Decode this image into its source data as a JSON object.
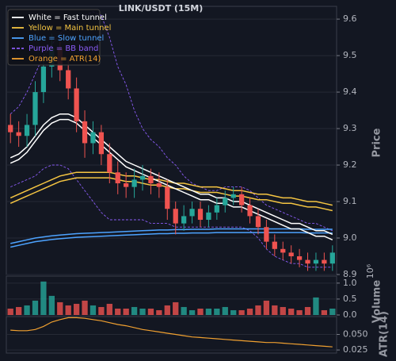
{
  "chart_data": {
    "type": "candlestick",
    "title": "LINK/USDT (15M)",
    "ylabel": "Price",
    "ylim": [
      8.9,
      9.635
    ],
    "yticks": [
      8.9,
      {
        "value": 9,
        "label": "9.0"
      },
      9.1,
      9.2,
      9.3,
      9.4,
      9.5,
      9.6
    ],
    "up_color": "#26a69a",
    "down_color": "#ef5350",
    "open": [
      9.31,
      9.29,
      9.28,
      9.31,
      9.4,
      9.47,
      9.52,
      9.46,
      9.41,
      9.32,
      9.26,
      9.29,
      9.23,
      9.18,
      9.15,
      9.14,
      9.16,
      9.17,
      9.15,
      9.14,
      9.08,
      9.04,
      9.06,
      9.08,
      9.05,
      9.07,
      9.09,
      9.11,
      9.12,
      9.09,
      9.06,
      9.03,
      8.99,
      8.97,
      8.96,
      8.95,
      8.94,
      8.93,
      8.94,
      8.93
    ],
    "high": [
      9.34,
      9.32,
      9.34,
      9.43,
      9.5,
      9.56,
      9.55,
      9.49,
      9.44,
      9.35,
      9.32,
      9.31,
      9.26,
      9.21,
      9.18,
      9.19,
      9.2,
      9.19,
      9.18,
      9.16,
      9.1,
      9.09,
      9.1,
      9.1,
      9.09,
      9.11,
      9.13,
      9.14,
      9.14,
      9.11,
      9.08,
      9.05,
      9.01,
      8.99,
      8.98,
      8.97,
      8.96,
      8.96,
      8.96,
      8.98
    ],
    "low": [
      9.26,
      9.25,
      9.25,
      9.28,
      9.37,
      9.44,
      9.43,
      9.38,
      9.29,
      9.22,
      9.23,
      9.2,
      9.15,
      9.12,
      9.11,
      9.11,
      9.13,
      9.12,
      9.11,
      9.05,
      9.01,
      9.02,
      9.04,
      9.03,
      9.03,
      9.05,
      9.07,
      9.09,
      9.07,
      9.04,
      9.01,
      8.97,
      8.95,
      8.94,
      8.93,
      8.92,
      8.91,
      8.91,
      8.91,
      8.91
    ],
    "close": [
      9.29,
      9.28,
      9.31,
      9.4,
      9.47,
      9.52,
      9.46,
      9.41,
      9.32,
      9.26,
      9.29,
      9.23,
      9.18,
      9.15,
      9.14,
      9.16,
      9.17,
      9.15,
      9.14,
      9.08,
      9.04,
      9.06,
      9.08,
      9.05,
      9.07,
      9.09,
      9.11,
      9.12,
      9.09,
      9.06,
      9.03,
      8.99,
      8.97,
      8.96,
      8.95,
      8.94,
      8.93,
      8.94,
      8.93,
      8.96
    ],
    "overlays": [
      {
        "color": "#8a5cf6",
        "dash": true,
        "values": [
          9.34,
          9.36,
          9.4,
          9.45,
          9.5,
          9.53,
          9.56,
          9.58,
          9.6,
          9.61,
          9.62,
          9.61,
          9.55,
          9.47,
          9.42,
          9.35,
          9.3,
          9.27,
          9.25,
          9.22,
          9.2,
          9.17,
          9.15,
          9.14,
          9.13,
          9.13,
          9.14,
          9.14,
          9.14,
          9.13,
          9.11,
          9.09,
          9.08,
          9.07,
          9.06,
          9.05,
          9.04,
          9.04,
          9.03,
          9.02
        ]
      },
      {
        "color": "#8a5cf6",
        "dash": true,
        "values": [
          9.14,
          9.15,
          9.16,
          9.17,
          9.19,
          9.2,
          9.2,
          9.19,
          9.16,
          9.13,
          9.1,
          9.07,
          9.05,
          9.05,
          9.05,
          9.05,
          9.05,
          9.04,
          9.04,
          9.04,
          9.03,
          9.03,
          9.03,
          9.03,
          9.03,
          9.03,
          9.03,
          9.03,
          9.03,
          9.02,
          9.0,
          8.97,
          8.95,
          8.94,
          8.93,
          8.93,
          8.92,
          8.92,
          8.92,
          8.92
        ]
      },
      {
        "color": "#4da3ff",
        "dash": false,
        "values": [
          8.985,
          8.99,
          8.995,
          9.0,
          9.003,
          9.006,
          9.008,
          9.01,
          9.012,
          9.013,
          9.014,
          9.015,
          9.016,
          9.017,
          9.018,
          9.019,
          9.02,
          9.021,
          9.022,
          9.022,
          9.023,
          9.023,
          9.024,
          9.024,
          9.024,
          9.025,
          9.025,
          9.025,
          9.025,
          9.025,
          9.025,
          9.025,
          9.025,
          9.025,
          9.025,
          9.025,
          9.024,
          9.024,
          9.024,
          9.024
        ]
      },
      {
        "color": "#4da3ff",
        "dash": false,
        "values": [
          8.975,
          8.98,
          8.985,
          8.99,
          8.993,
          8.996,
          8.998,
          9.0,
          9.002,
          9.003,
          9.004,
          9.005,
          9.006,
          9.007,
          9.008,
          9.009,
          9.01,
          9.011,
          9.012,
          9.012,
          9.013,
          9.013,
          9.014,
          9.014,
          9.014,
          9.015,
          9.015,
          9.015,
          9.015,
          9.015,
          9.015,
          9.015,
          9.015,
          9.015,
          9.015,
          9.015,
          9.014,
          9.014,
          9.014,
          9.014
        ]
      },
      {
        "color": "#f5c542",
        "dash": false,
        "values": [
          9.11,
          9.12,
          9.13,
          9.14,
          9.15,
          9.16,
          9.17,
          9.175,
          9.18,
          9.18,
          9.18,
          9.18,
          9.18,
          9.175,
          9.17,
          9.17,
          9.165,
          9.16,
          9.16,
          9.155,
          9.15,
          9.15,
          9.145,
          9.14,
          9.14,
          9.14,
          9.135,
          9.13,
          9.13,
          9.125,
          9.12,
          9.12,
          9.115,
          9.11,
          9.11,
          9.105,
          9.1,
          9.1,
          9.095,
          9.09
        ]
      },
      {
        "color": "#f5c542",
        "dash": false,
        "values": [
          9.095,
          9.105,
          9.115,
          9.125,
          9.135,
          9.145,
          9.155,
          9.16,
          9.165,
          9.165,
          9.165,
          9.165,
          9.165,
          9.16,
          9.155,
          9.155,
          9.15,
          9.145,
          9.145,
          9.14,
          9.135,
          9.135,
          9.13,
          9.125,
          9.125,
          9.125,
          9.12,
          9.115,
          9.115,
          9.11,
          9.105,
          9.105,
          9.1,
          9.095,
          9.095,
          9.09,
          9.085,
          9.085,
          9.08,
          9.075
        ]
      },
      {
        "color": "#ffffff",
        "dash": false,
        "values": [
          9.22,
          9.23,
          9.25,
          9.28,
          9.31,
          9.33,
          9.34,
          9.34,
          9.33,
          9.31,
          9.29,
          9.27,
          9.25,
          9.23,
          9.21,
          9.2,
          9.19,
          9.18,
          9.17,
          9.16,
          9.15,
          9.14,
          9.13,
          9.12,
          9.12,
          9.11,
          9.11,
          9.1,
          9.1,
          9.09,
          9.08,
          9.07,
          9.06,
          9.05,
          9.04,
          9.04,
          9.03,
          9.02,
          9.02,
          9.01
        ]
      },
      {
        "color": "#ffffff",
        "dash": false,
        "values": [
          9.205,
          9.215,
          9.235,
          9.265,
          9.295,
          9.315,
          9.325,
          9.325,
          9.315,
          9.295,
          9.275,
          9.255,
          9.235,
          9.215,
          9.195,
          9.185,
          9.175,
          9.165,
          9.155,
          9.145,
          9.135,
          9.125,
          9.115,
          9.105,
          9.105,
          9.095,
          9.095,
          9.085,
          9.085,
          9.075,
          9.065,
          9.055,
          9.045,
          9.035,
          9.025,
          9.025,
          9.015,
          9.005,
          9.005,
          8.995
        ]
      }
    ],
    "legend": [
      {
        "label": "White = Fast tunnel",
        "color": "#ffffff",
        "dash": false
      },
      {
        "label": "Yellow = Main tunnel",
        "color": "#f5c542",
        "dash": false
      },
      {
        "label": "Blue = Slow tunnel",
        "color": "#4da3ff",
        "dash": false
      },
      {
        "label": "Purple = BB band",
        "color": "#8a5cf6",
        "dash": true
      },
      {
        "label": "Orange = ATR(14)",
        "color": "#f0a030",
        "dash": false
      }
    ],
    "volume": {
      "ylabel": "Volume",
      "exponent_label": "10⁶",
      "ylim": [
        0,
        1.22
      ],
      "yticks": [
        {
          "value": 0,
          "label": "0.0"
        },
        0.5,
        {
          "value": 1,
          "label": "1.0"
        }
      ],
      "values": [
        0.2,
        0.25,
        0.3,
        0.45,
        1.05,
        0.6,
        0.4,
        0.3,
        0.35,
        0.45,
        0.3,
        0.25,
        0.35,
        0.2,
        0.2,
        0.25,
        0.2,
        0.2,
        0.15,
        0.3,
        0.4,
        0.25,
        0.15,
        0.2,
        0.2,
        0.2,
        0.25,
        0.15,
        0.15,
        0.2,
        0.3,
        0.45,
        0.3,
        0.25,
        0.2,
        0.15,
        0.25,
        0.55,
        0.15,
        0.2
      ]
    },
    "atr": {
      "ylabel": "ATR(14)",
      "color": "#f0a030",
      "ylim": [
        0.02,
        0.0788
      ],
      "yticks": [
        0.025,
        {
          "value": 0.05,
          "label": "0.050"
        }
      ],
      "values": [
        0.057,
        0.056,
        0.056,
        0.058,
        0.063,
        0.07,
        0.074,
        0.077,
        0.077,
        0.076,
        0.074,
        0.072,
        0.069,
        0.066,
        0.064,
        0.061,
        0.058,
        0.056,
        0.054,
        0.052,
        0.05,
        0.048,
        0.046,
        0.045,
        0.044,
        0.043,
        0.042,
        0.041,
        0.04,
        0.039,
        0.038,
        0.037,
        0.037,
        0.036,
        0.035,
        0.034,
        0.033,
        0.032,
        0.031,
        0.03
      ]
    }
  }
}
